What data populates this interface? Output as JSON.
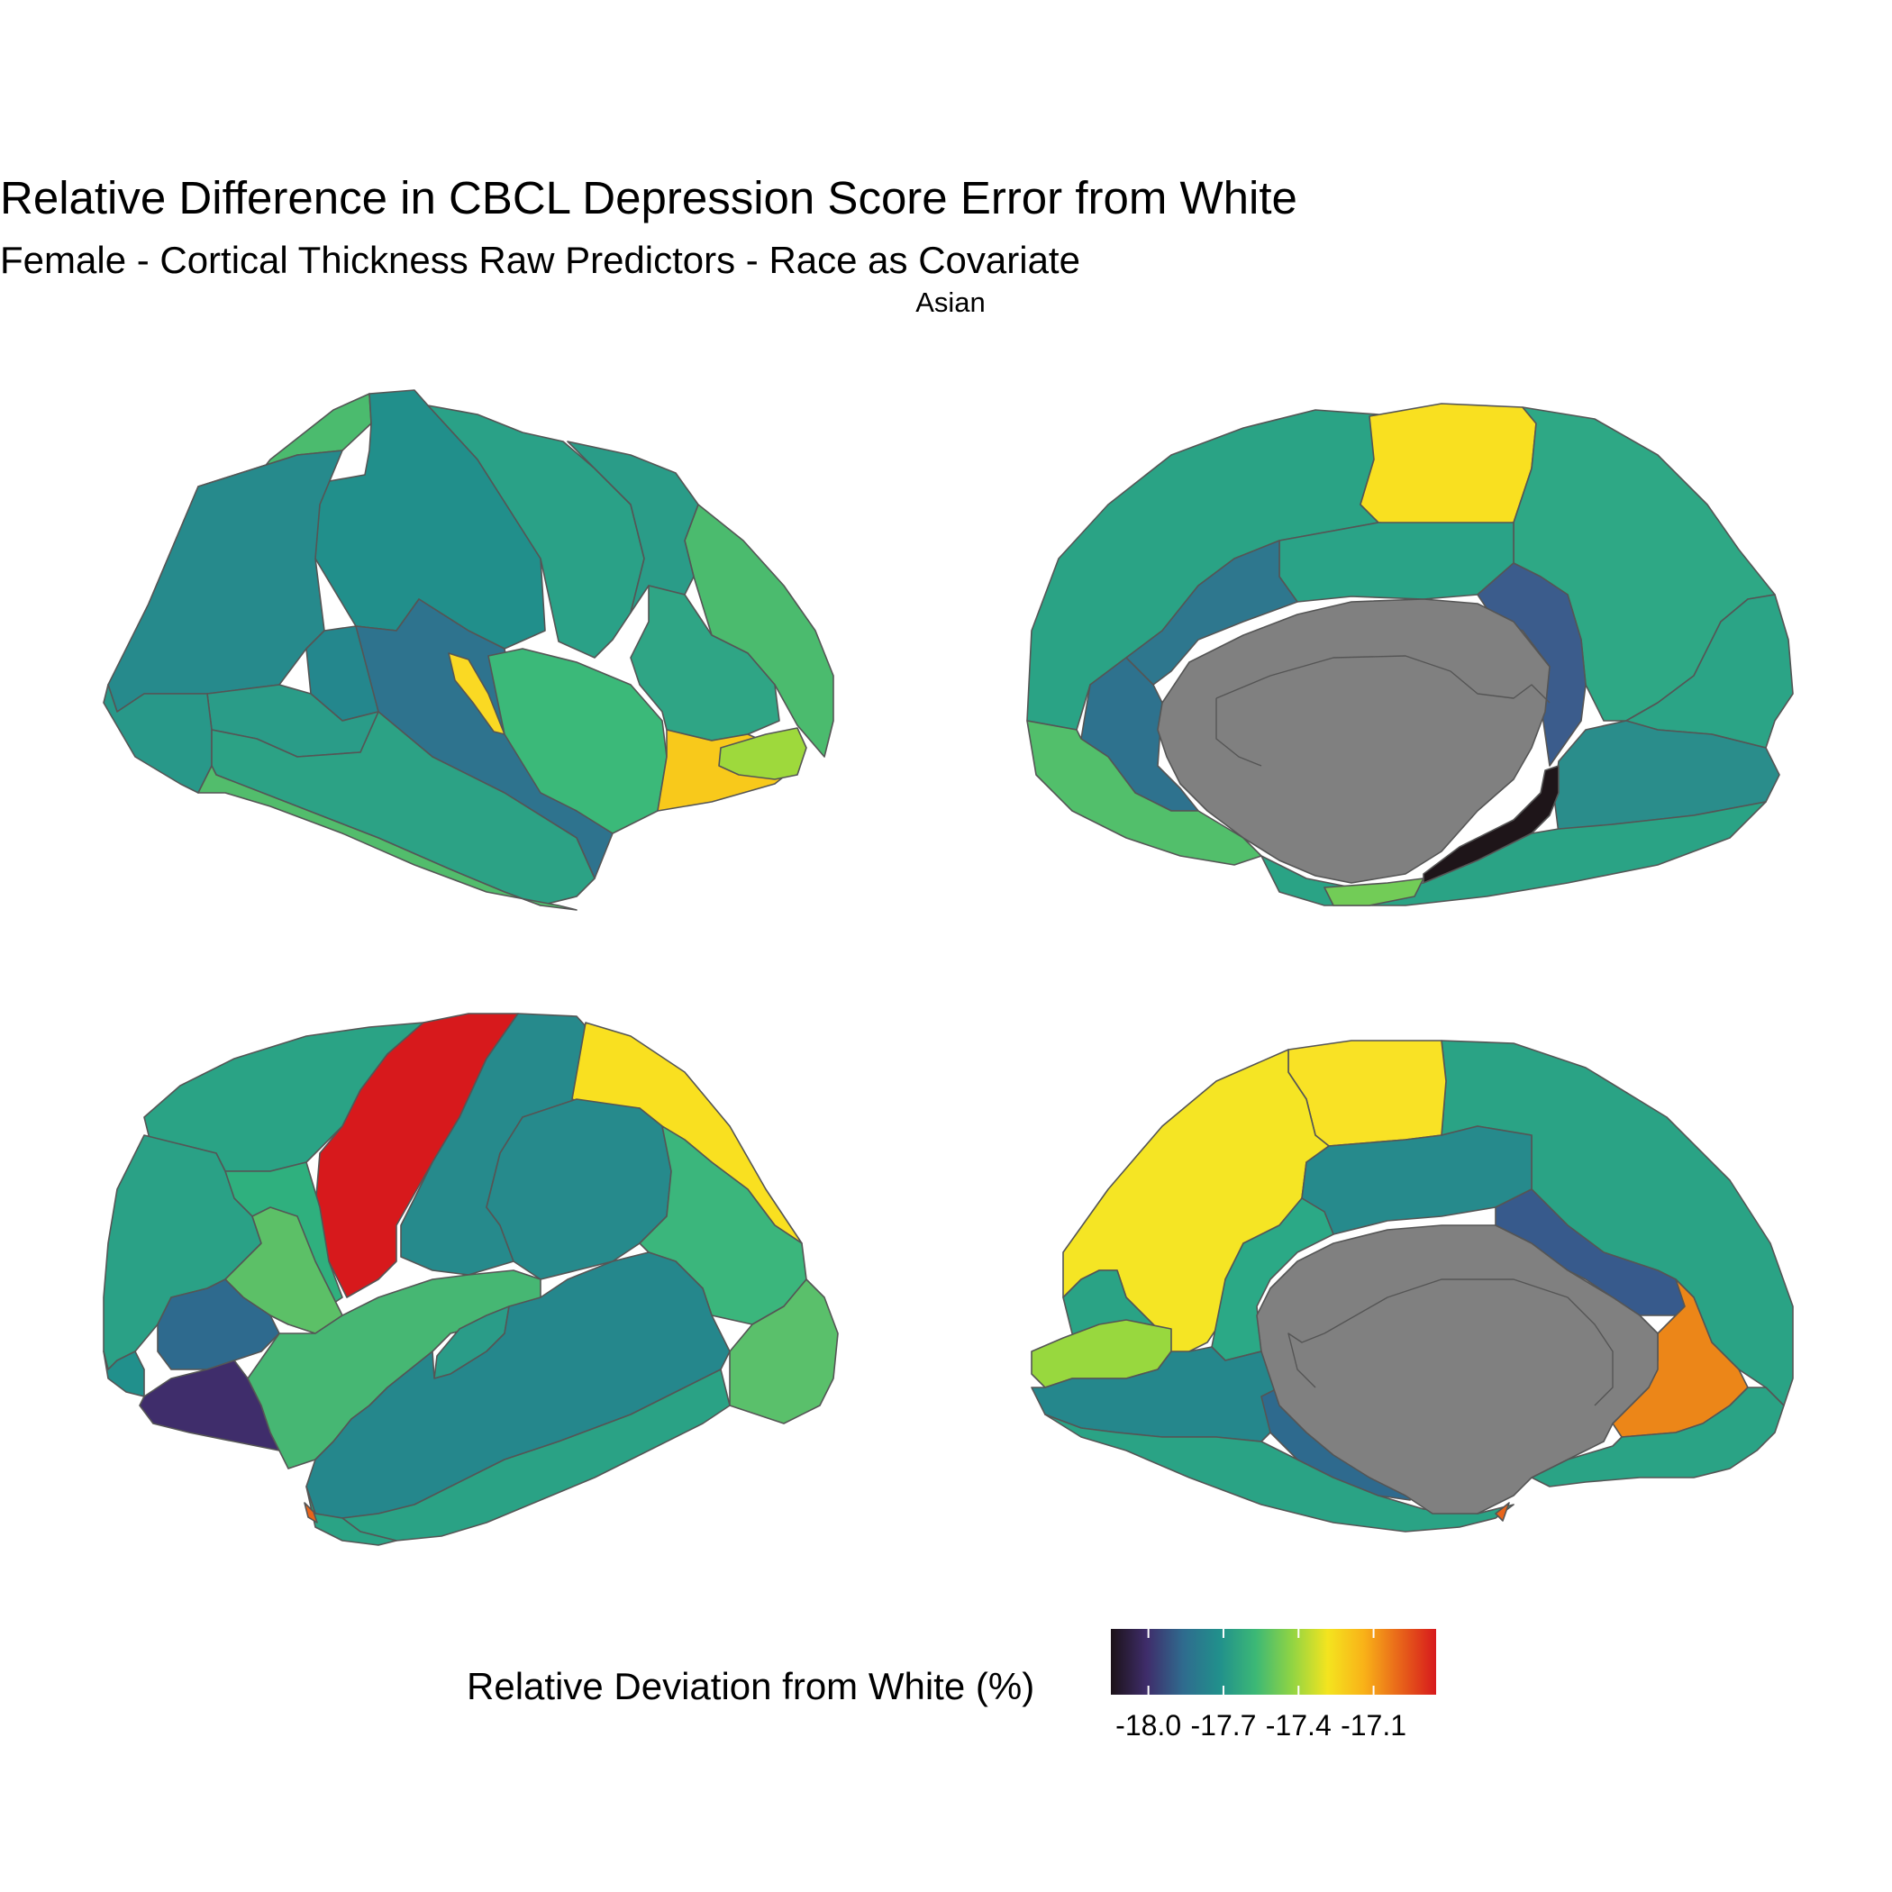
{
  "title": "Relative Difference in CBCL Depression Score Error from White",
  "subtitle": "Female - Cortical Thickness Raw Predictors - Race as Covariate",
  "panel_label": "Asian",
  "legend": {
    "title": "Relative Deviation from White (%)",
    "ticks": [
      {
        "label": "-18.0",
        "value": -18.0
      },
      {
        "label": "-17.7",
        "value": -17.7
      },
      {
        "label": "-17.4",
        "value": -17.4
      },
      {
        "label": "-17.1",
        "value": -17.1
      }
    ],
    "range": [
      -18.15,
      -16.85
    ],
    "gradient_colors": [
      "#1c1218",
      "#3f2d6b",
      "#2f6b8e",
      "#21908c",
      "#3cb876",
      "#8fd444",
      "#f4e41f",
      "#f9b218",
      "#e8641a",
      "#d7191c"
    ]
  },
  "views": [
    {
      "name": "left-lateral",
      "regions": [
        {
          "id": "lh-lat-caudal-middle-frontal",
          "color": "#4bbb6e"
        },
        {
          "id": "lh-lat-precentral",
          "color": "#218f8b"
        },
        {
          "id": "lh-lat-postcentral",
          "color": "#2aa187"
        },
        {
          "id": "lh-lat-superior-parietal",
          "color": "#4bbb6e"
        },
        {
          "id": "lh-lat-supramarginal",
          "color": "#2a9c88"
        },
        {
          "id": "lh-lat-rostral-middle-frontal",
          "color": "#268a8c"
        },
        {
          "id": "lh-lat-pars-opercularis",
          "color": "#24878d"
        },
        {
          "id": "lh-lat-pars-triangularis",
          "color": "#2a9c88"
        },
        {
          "id": "lh-lat-lateral-orbitofrontal",
          "color": "#289889"
        },
        {
          "id": "lh-lat-superior-temporal",
          "color": "#2e738e"
        },
        {
          "id": "lh-lat-transverse-temporal",
          "color": "#fad923"
        },
        {
          "id": "lh-lat-middle-temporal",
          "color": "#2ca285"
        },
        {
          "id": "lh-lat-inferior-temporal",
          "color": "#52bd6c"
        },
        {
          "id": "lh-lat-bankssts",
          "color": "#3bb979"
        },
        {
          "id": "lh-lat-inferior-parietal",
          "color": "#2fa585"
        },
        {
          "id": "lh-lat-lateral-occipital-upper",
          "color": "#2ba486"
        },
        {
          "id": "lh-lat-lateral-occipital",
          "color": "#f8c91b"
        },
        {
          "id": "lh-lat-lingual-tip",
          "color": "#9ed93c"
        }
      ]
    },
    {
      "name": "left-medial",
      "regions": [
        {
          "id": "lh-med-superior-frontal",
          "color": "#2aa385"
        },
        {
          "id": "lh-med-paracentral",
          "color": "#f9e020"
        },
        {
          "id": "lh-med-precuneus",
          "color": "#2ea885"
        },
        {
          "id": "lh-med-posterior-cingulate",
          "color": "#2aa387"
        },
        {
          "id": "lh-med-isthmus-cingulate",
          "color": "#3b5c8c"
        },
        {
          "id": "lh-med-caudal-anterior-cingulate",
          "color": "#2e778e"
        },
        {
          "id": "lh-med-rostral-anterior-cingulate",
          "color": "#2e728e"
        },
        {
          "id": "lh-med-medial-orbitofrontal",
          "color": "#52bf6b"
        },
        {
          "id": "lh-med-cuneus",
          "color": "#2ba486"
        },
        {
          "id": "lh-med-lingual",
          "color": "#2a8d8b"
        },
        {
          "id": "lh-med-parahippocampal",
          "color": "#1e1519"
        },
        {
          "id": "lh-med-entorhinal",
          "color": "#72cc57"
        },
        {
          "id": "lh-med-unknown",
          "color": "#808080"
        }
      ]
    },
    {
      "name": "right-lateral",
      "regions": [
        {
          "id": "rh-lat-superior-frontal",
          "color": "#2aa385"
        },
        {
          "id": "rh-lat-precentral",
          "color": "#d7191c"
        },
        {
          "id": "rh-lat-postcentral",
          "color": "#268a8c"
        },
        {
          "id": "rh-lat-superior-parietal",
          "color": "#f9e020"
        },
        {
          "id": "rh-lat-caudal-middle-frontal",
          "color": "#2fb07e"
        },
        {
          "id": "rh-lat-rostral-middle-frontal",
          "color": "#2aa186"
        },
        {
          "id": "rh-lat-supramarginal",
          "color": "#268a8c"
        },
        {
          "id": "rh-lat-inferior-parietal",
          "color": "#3bb67c"
        },
        {
          "id": "rh-lat-lateral-occipital",
          "color": "#5ac06b"
        },
        {
          "id": "rh-lat-pars-opercularis",
          "color": "#5cc067"
        },
        {
          "id": "rh-lat-pars-triangularis",
          "color": "#2e6a8e"
        },
        {
          "id": "rh-lat-lateral-orbitofrontal",
          "color": "#3f2d6b"
        },
        {
          "id": "rh-lat-superior-temporal",
          "color": "#46b773"
        },
        {
          "id": "rh-lat-middle-temporal",
          "color": "#25878c"
        },
        {
          "id": "rh-lat-inferior-temporal",
          "color": "#2aa285"
        },
        {
          "id": "rh-lat-bankssts",
          "color": "#2a9c88"
        }
      ]
    },
    {
      "name": "right-medial",
      "regions": [
        {
          "id": "rh-med-superior-frontal",
          "color": "#2aa385"
        },
        {
          "id": "rh-med-paracentral",
          "color": "#f9e225"
        },
        {
          "id": "rh-med-precuneus",
          "color": "#f5e524"
        },
        {
          "id": "rh-med-posterior-cingulate",
          "color": "#268a8c"
        },
        {
          "id": "rh-med-isthmus-cingulate",
          "color": "#2ba986"
        },
        {
          "id": "rh-med-caudal-anterior-cingulate",
          "color": "#375a8c"
        },
        {
          "id": "rh-med-rostral-anterior-cingulate",
          "color": "#ec8618"
        },
        {
          "id": "rh-med-medial-orbitofrontal",
          "color": "#2aa385"
        },
        {
          "id": "rh-med-cuneus",
          "color": "#2aa385"
        },
        {
          "id": "rh-med-pericalcarine",
          "color": "#98d83e"
        },
        {
          "id": "rh-med-lingual",
          "color": "#25878c"
        },
        {
          "id": "rh-med-parahippocampal",
          "color": "#2e6a8e"
        },
        {
          "id": "rh-med-unknown",
          "color": "#808080"
        }
      ]
    }
  ]
}
